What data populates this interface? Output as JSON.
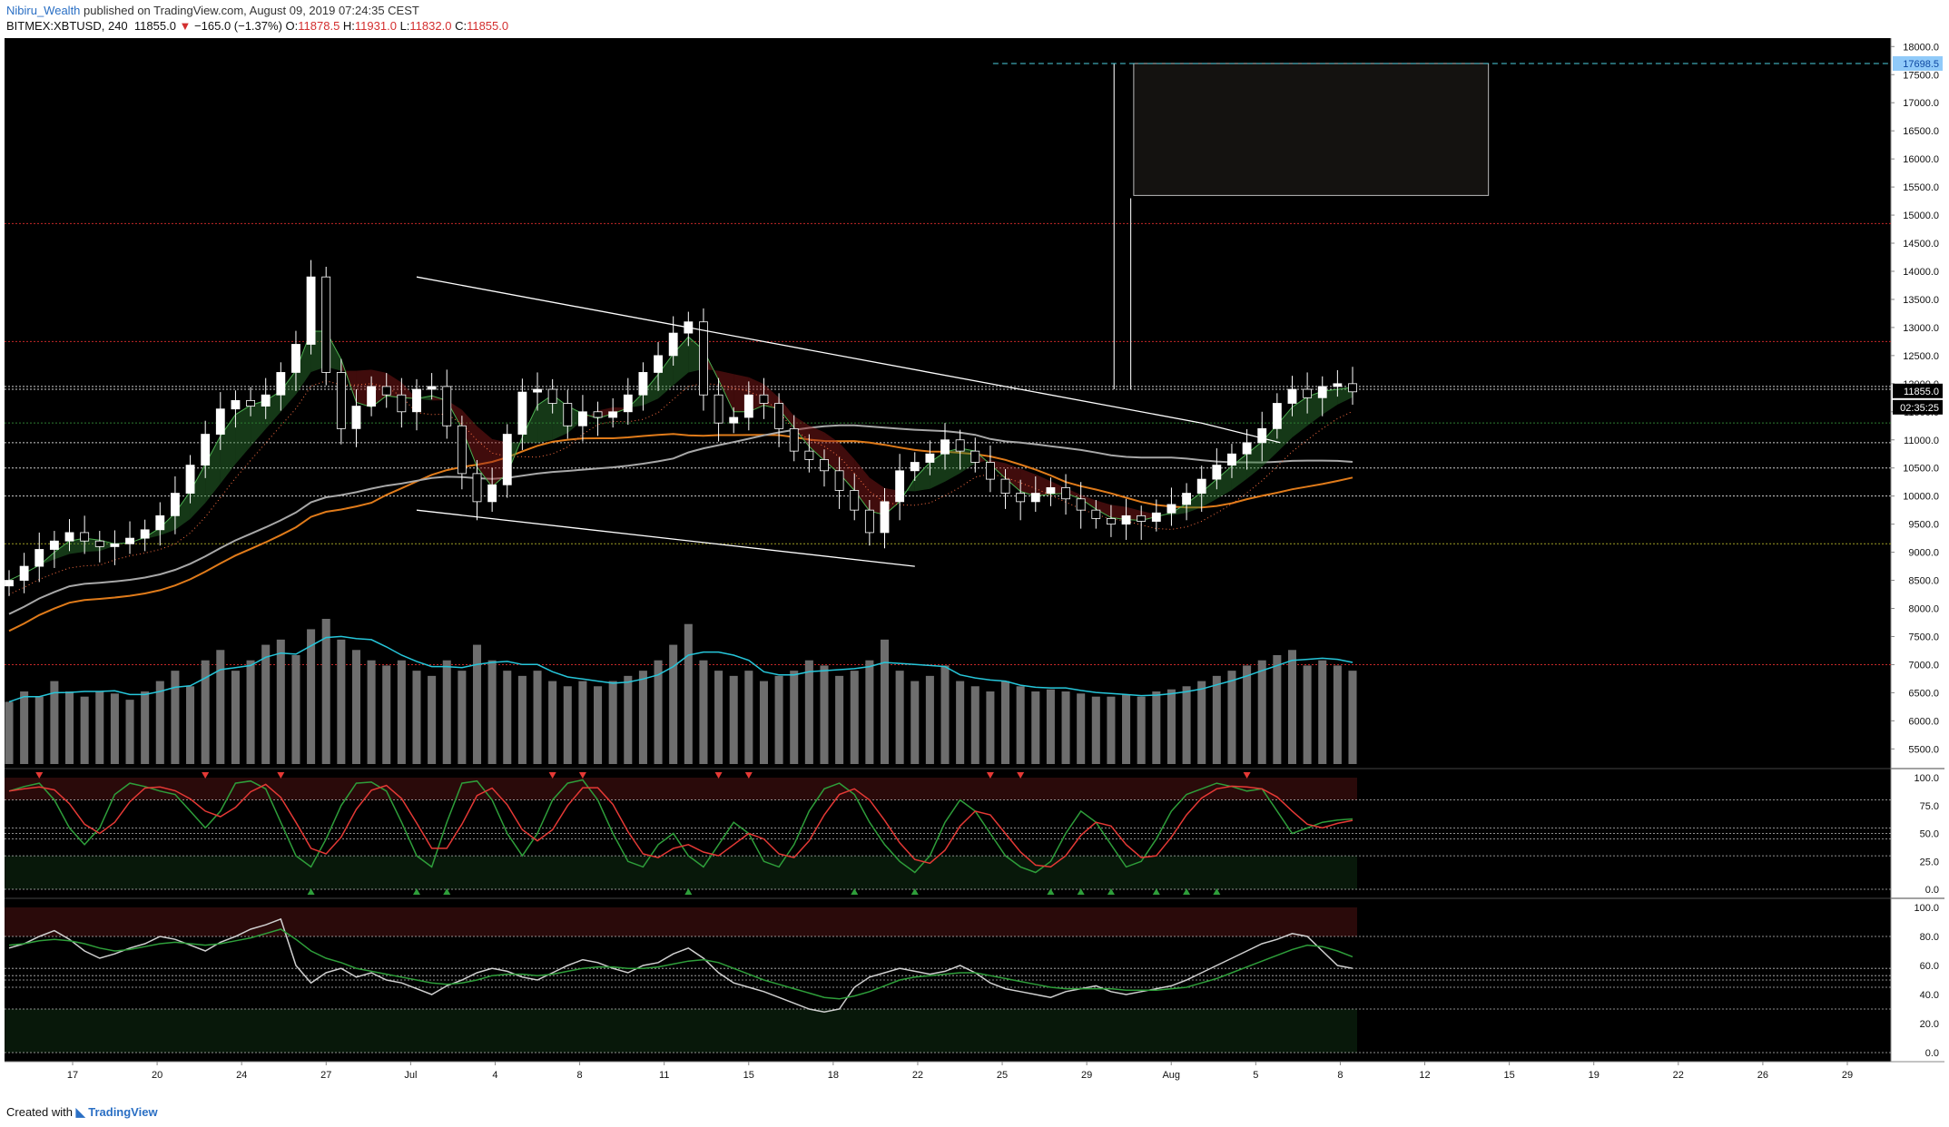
{
  "header": {
    "user": "Nibiru_Wealth",
    "published": "published on TradingView.com, August 09, 2019 07:24:35 CEST",
    "symbol": "BITMEX:XBTUSD, 240",
    "last": "11855.0",
    "change_arrow": "▼",
    "change": "−165.0 (−1.37%)",
    "o_label": "O:",
    "o": "11878.5",
    "h_label": "H:",
    "h": "11931.0",
    "l_label": "L:",
    "l": "11832.0",
    "c_label": "C:",
    "c": "11855.0"
  },
  "footer": {
    "created_with": "Created with",
    "brand": "TradingView"
  },
  "colors": {
    "background": "#000000",
    "candle": "#ffffff",
    "trendline": "#ffffff",
    "red_level": "#c62828",
    "green_level": "#2e7d32",
    "yellow_level": "#9e9d24",
    "volume": "#6e6e6e",
    "volume_ma": "#26c6da",
    "ma_orange": "#e07b1a",
    "ma_gray": "#a8a8a8",
    "ribbon_green": "#2e7d32",
    "ribbon_red": "#8e1b1b",
    "stoch_k": "#2e9e3a",
    "stoch_d": "#e53935",
    "stoch_d_alt": "#d4c94a",
    "rsi": "#d0d0d0",
    "rsi_ma": "#2e9e3a",
    "axis_text": "#111111",
    "price_tag": "#1e88e5"
  },
  "chart_data": [
    {
      "type": "candlestick",
      "title": "BITMEX:XBTUSD, 240",
      "x_labels": [
        "17",
        "20",
        "24",
        "27",
        "Jul",
        "4",
        "8",
        "11",
        "15",
        "18",
        "22",
        "25",
        "29",
        "Aug",
        "5",
        "8",
        "12",
        "15",
        "19",
        "22",
        "26",
        "29"
      ],
      "y_ticks": [
        "5500.0",
        "6000.0",
        "6500.0",
        "7000.0",
        "7500.0",
        "8000.0",
        "8500.0",
        "9000.0",
        "9500.0",
        "10000.0",
        "10500.0",
        "11000.0",
        "11500.0",
        "12000.0",
        "12500.0",
        "13000.0",
        "13500.0",
        "14000.0",
        "14500.0",
        "15000.0",
        "15500.0",
        "16000.0",
        "16500.0",
        "17000.0",
        "17500.0",
        "18000.0"
      ],
      "ylim": [
        5150,
        18150
      ],
      "last_price": "11855.0",
      "countdown": "02:35:25",
      "target_price": "17698.5",
      "close_series": [
        8500,
        8750,
        9050,
        9200,
        9350,
        9200,
        9100,
        9150,
        9250,
        9400,
        9650,
        10050,
        10550,
        11100,
        11550,
        11700,
        11600,
        11800,
        12200,
        12700,
        13900,
        12200,
        11200,
        11600,
        11950,
        11800,
        11500,
        11900,
        11950,
        11250,
        10400,
        9900,
        10200,
        11100,
        11850,
        11900,
        11650,
        11250,
        11500,
        11400,
        11500,
        11800,
        12200,
        12500,
        12900,
        13100,
        11800,
        11300,
        11400,
        11800,
        11650,
        11200,
        10800,
        10650,
        10450,
        10100,
        9750,
        9350,
        9900,
        10450,
        10600,
        10750,
        11000,
        10800,
        10600,
        10300,
        10050,
        9900,
        10050,
        10150,
        9950,
        9750,
        9600,
        9500,
        9650,
        9550,
        9700,
        9850,
        10050,
        10300,
        10550,
        10750,
        10950,
        11200,
        11650,
        11900,
        11750,
        11950,
        12000,
        11855
      ],
      "horizontal_levels": [
        {
          "price": 14850,
          "color": "red"
        },
        {
          "price": 12750,
          "color": "red"
        },
        {
          "price": 11950,
          "color": "white"
        },
        {
          "price": 11900,
          "color": "white"
        },
        {
          "price": 11300,
          "color": "green"
        },
        {
          "price": 10950,
          "color": "white"
        },
        {
          "price": 10500,
          "color": "white"
        },
        {
          "price": 10000,
          "color": "white"
        },
        {
          "price": 9150,
          "color": "yellow"
        },
        {
          "price": 7000,
          "color": "red"
        }
      ],
      "upper_trendline": [
        [
          27,
          13900
        ],
        [
          79,
          11300
        ],
        [
          84.2,
          10950
        ]
      ],
      "lower_trendline": [
        [
          27,
          9750
        ],
        [
          60,
          8750
        ]
      ],
      "projection_box": {
        "x_start": 74.5,
        "x_end": 98,
        "price_low": 15350,
        "price_high": 17698.5
      },
      "spike_lines": [
        {
          "x": 73.2,
          "high": 17698.5
        },
        {
          "x": 74.3,
          "high": 15300
        }
      ]
    },
    {
      "type": "bar",
      "title": "Volume",
      "values": [
        6,
        7,
        6.5,
        8,
        7,
        6.5,
        7,
        6.8,
        6.2,
        7,
        8,
        9,
        7.5,
        10,
        11,
        9,
        10,
        11.5,
        12,
        10.5,
        13,
        14,
        12,
        11,
        10,
        9.5,
        10,
        9,
        8.5,
        10,
        9,
        11.5,
        10,
        9,
        8.5,
        9,
        8,
        7.5,
        8,
        7.5,
        8,
        8.5,
        9,
        10,
        11.5,
        13.5,
        10,
        9,
        8.5,
        9,
        8,
        8.5,
        9,
        10,
        9.5,
        8.5,
        9,
        10,
        12,
        9,
        8,
        8.5,
        9.5,
        8,
        7.5,
        7,
        8,
        7.5,
        7,
        7.2,
        7,
        6.8,
        6.5,
        6.5,
        6.7,
        6.5,
        7,
        7.2,
        7.5,
        8,
        8.5,
        9,
        9.5,
        10,
        10.5,
        11,
        9.5,
        10,
        9.5,
        9
      ]
    },
    {
      "type": "line",
      "title": "Stoch RSI",
      "y_ticks": [
        "0.0",
        "25.0",
        "50.0",
        "75.0",
        "100.0"
      ],
      "ylim": [
        0,
        100
      ],
      "levels": [
        80,
        55,
        50,
        45,
        30
      ],
      "k": [
        88,
        92,
        95,
        80,
        55,
        40,
        55,
        85,
        95,
        92,
        88,
        85,
        70,
        55,
        70,
        95,
        97,
        90,
        60,
        30,
        20,
        45,
        75,
        95,
        96,
        88,
        60,
        30,
        20,
        60,
        95,
        97,
        80,
        50,
        30,
        50,
        80,
        95,
        98,
        80,
        50,
        25,
        20,
        40,
        50,
        30,
        20,
        40,
        60,
        50,
        25,
        20,
        40,
        70,
        90,
        95,
        85,
        60,
        40,
        25,
        15,
        30,
        60,
        80,
        70,
        50,
        30,
        20,
        15,
        25,
        50,
        70,
        60,
        40,
        20,
        25,
        45,
        70,
        85,
        90,
        95,
        92,
        88,
        90,
        70,
        50,
        55,
        60,
        62,
        63
      ],
      "buy_markers": [
        9,
        12,
        13,
        20,
        25,
        27,
        31,
        32,
        33,
        34,
        35,
        36
      ],
      "sell_markers": [
        1,
        6,
        8,
        16,
        17,
        21,
        22,
        29,
        30,
        37
      ]
    },
    {
      "type": "line",
      "title": "RSI",
      "y_ticks": [
        "0.0",
        "20.0",
        "40.0",
        "60.0",
        "80.0",
        "100.0"
      ],
      "ylim": [
        0,
        100
      ],
      "levels": [
        80,
        58,
        53,
        50,
        45,
        30
      ],
      "rsi": [
        72,
        75,
        80,
        84,
        78,
        70,
        65,
        68,
        72,
        75,
        80,
        78,
        74,
        70,
        76,
        80,
        85,
        88,
        92,
        60,
        48,
        55,
        58,
        52,
        55,
        50,
        48,
        44,
        40,
        46,
        50,
        55,
        58,
        56,
        52,
        50,
        55,
        60,
        64,
        62,
        58,
        55,
        60,
        62,
        68,
        72,
        65,
        55,
        48,
        45,
        42,
        38,
        34,
        30,
        28,
        30,
        45,
        52,
        55,
        58,
        56,
        54,
        56,
        60,
        55,
        48,
        44,
        42,
        40,
        38,
        42,
        44,
        46,
        42,
        40,
        42,
        44,
        46,
        50,
        55,
        60,
        65,
        70,
        75,
        78,
        82,
        80,
        70,
        60,
        58
      ],
      "rsi_ma": [
        74,
        75,
        77,
        78,
        77,
        75,
        72,
        70,
        71,
        73,
        75,
        76,
        75,
        74,
        75,
        77,
        79,
        82,
        85,
        78,
        70,
        65,
        62,
        58,
        56,
        54,
        52,
        50,
        48,
        47,
        48,
        50,
        53,
        54,
        54,
        53,
        54,
        56,
        58,
        59,
        59,
        58,
        58,
        59,
        61,
        63,
        64,
        62,
        58,
        54,
        50,
        47,
        44,
        41,
        38,
        37,
        39,
        42,
        46,
        50,
        52,
        53,
        54,
        55,
        55,
        53,
        51,
        49,
        47,
        45,
        44,
        44,
        44,
        44,
        43,
        43,
        43,
        44,
        45,
        48,
        51,
        55,
        59,
        63,
        67,
        71,
        74,
        73,
        70,
        66
      ]
    }
  ]
}
